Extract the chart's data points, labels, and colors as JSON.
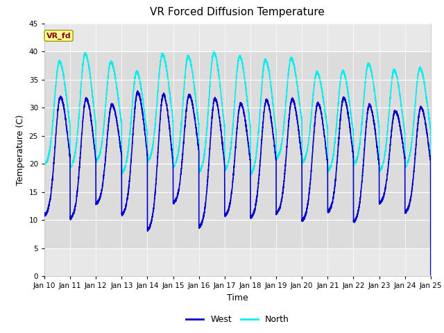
{
  "title": "VR Forced Diffusion Temperature",
  "xlabel": "Time",
  "ylabel": "Temperature (C)",
  "ylim": [
    0,
    45
  ],
  "xlim": [
    0,
    15
  ],
  "yticks": [
    0,
    5,
    10,
    15,
    20,
    25,
    30,
    35,
    40,
    45
  ],
  "xtick_labels": [
    "Jan 10",
    "Jan 11",
    "Jan 12",
    "Jan 13",
    "Jan 14",
    "Jan 15",
    "Jan 16",
    "Jan 17",
    "Jan 18",
    "Jan 19",
    "Jan 20",
    "Jan 21",
    "Jan 22",
    "Jan 23",
    "Jan 24",
    "Jan 25"
  ],
  "west_color": "#0000CD",
  "north_color": "#00EEEE",
  "fig_bg_color": "#FFFFFF",
  "plot_bg_color": "#E8E8E8",
  "band_color": "#DCDCDC",
  "grid_color": "#FFFFFF",
  "annotation_text": "VR_fd",
  "annotation_bg": "#FFFF99",
  "annotation_fg": "#8B0000",
  "annotation_border": "#999900",
  "legend_west": "West",
  "legend_north": "North",
  "title_fontsize": 11,
  "axis_fontsize": 9,
  "tick_fontsize": 7.5,
  "west_lw": 1.2,
  "north_lw": 1.2,
  "figsize": [
    6.4,
    4.8
  ],
  "dpi": 100
}
